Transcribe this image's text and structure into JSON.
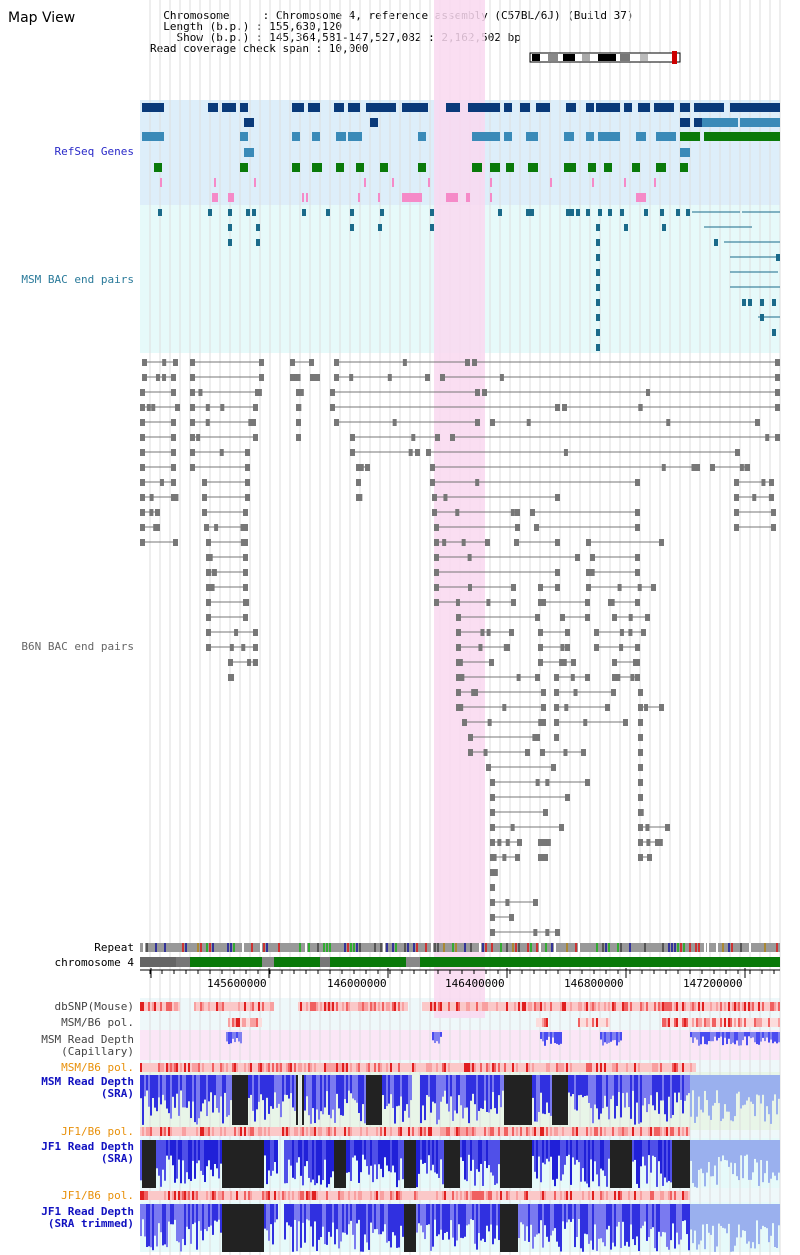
{
  "view": {
    "title": "Map View",
    "info_lines": [
      "  Chromosome     : Chromosome 4, reference assembly (C57BL/6J) (Build 37)",
      "  Length (b.p.) : 155,630,120",
      "    Show (b.p.) : 145,364,581-147,527,082 : 2,162,502 bp",
      "Read coverage check span : 10,000"
    ]
  },
  "tracks": {
    "refseq": "RefSeq Genes",
    "msm_bac": "MSM BAC end pairs",
    "b6n_bac": "B6N BAC end pairs",
    "repeat": "Repeat",
    "chromosome": "chromosome 4",
    "dbsnp": "dbSNP(Mouse)",
    "msm_b6_pol": "MSM/B6 pol.",
    "msm_depth_cap_1": "MSM Read Depth",
    "msm_depth_cap_2": "(Capillary)",
    "msm_b6_pol2": "MSM/B6 pol.",
    "msm_depth_sra_1": "MSM Read Depth",
    "msm_depth_sra_2": "(SRA)",
    "jf1_b6_pol": "JF1/B6 pol.",
    "jf1_depth_sra_1": "JF1 Read Depth",
    "jf1_depth_sra_2": "(SRA)",
    "jf1_b6_pol2": "JF1/B6 pol.",
    "jf1_depth_trim_1": "JF1 Read Depth",
    "jf1_depth_trim_2": "(SRA trimmed)"
  },
  "axis": {
    "ticks": [
      "145600000",
      "146000000",
      "146400000",
      "146800000",
      "147200000"
    ]
  },
  "colors": {
    "refseq_bg": "#ddeefa",
    "msm_bg": "#e6fafa",
    "highlight": "#f9d8f0",
    "dark_blue": "#0a3a7a",
    "mid_blue": "#3a8ab8",
    "green": "#0a7a0a",
    "pink": "#f58ac8",
    "chrom_green": "#0a7a0a"
  }
}
